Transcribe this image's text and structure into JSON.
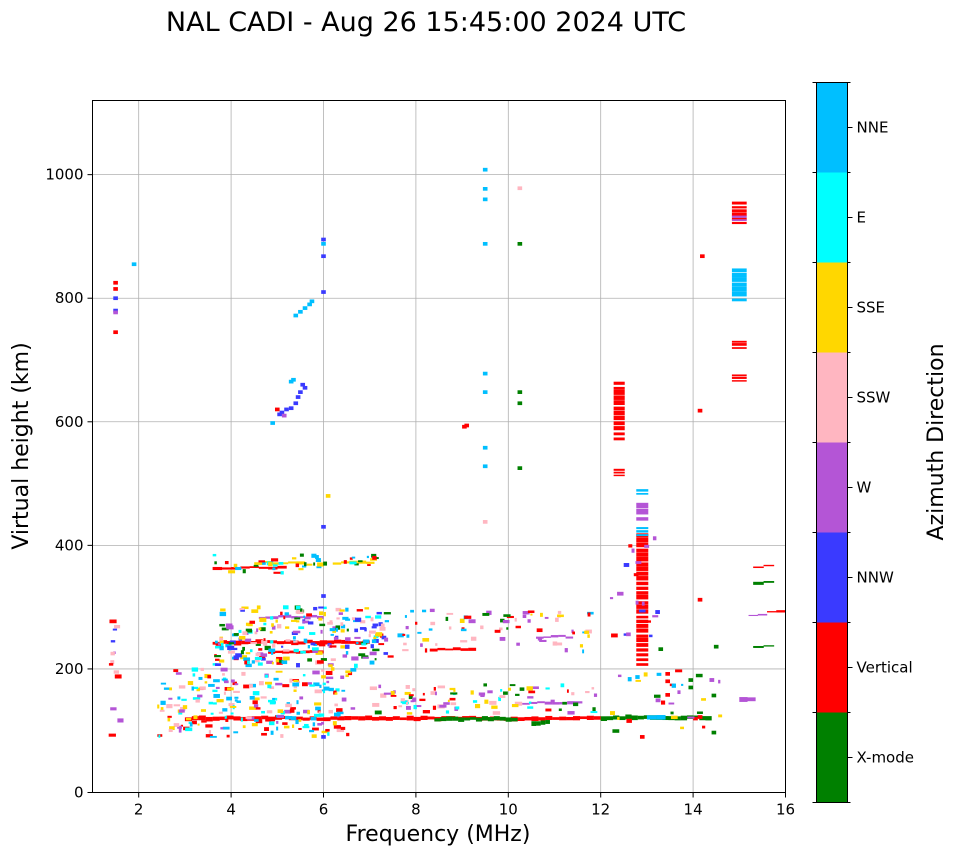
{
  "chart_data": {
    "type": "scatter",
    "title": "NAL CADI - Aug 26 15:45:00 2024 UTC",
    "xlabel": "Frequency (MHz)",
    "ylabel": "Virtual height (km)",
    "xlim": [
      1,
      16
    ],
    "ylim": [
      0,
      1120
    ],
    "xticks": [
      2,
      4,
      6,
      8,
      10,
      12,
      14,
      16
    ],
    "yticks": [
      0,
      200,
      400,
      600,
      800,
      1000
    ],
    "grid": true,
    "colorbar": {
      "label": "Azimuth Direction",
      "categories": [
        {
          "name": "X-mode",
          "color": "#008000"
        },
        {
          "name": "Vertical",
          "color": "#ff0000"
        },
        {
          "name": "NNW",
          "color": "#3a3aff"
        },
        {
          "name": "W",
          "color": "#b455d6"
        },
        {
          "name": "SSW",
          "color": "#ffb6c1"
        },
        {
          "name": "SSE",
          "color": "#ffd700"
        },
        {
          "name": "E",
          "color": "#00ffff"
        },
        {
          "name": "NNE",
          "color": "#00bfff"
        }
      ]
    },
    "bands": [
      {
        "c": "Vertical",
        "x0": 3.0,
        "x1": 12.0,
        "h": 120,
        "n": 60,
        "t": 6
      },
      {
        "c": "X-mode",
        "x0": 8.4,
        "x1": 10.2,
        "h": 119,
        "n": 14,
        "t": 6
      },
      {
        "c": "X-mode",
        "x0": 12.0,
        "x1": 14.4,
        "h": 121,
        "n": 18,
        "t": 6
      },
      {
        "c": "X-mode",
        "x0": 10.5,
        "x1": 10.9,
        "h": 113,
        "n": 4,
        "t": 7
      },
      {
        "c": "Vertical",
        "x0": 14.0,
        "x1": 14.2,
        "h": 121,
        "n": 2,
        "t": 6
      },
      {
        "c": "Vertical",
        "x0": 3.6,
        "x1": 7.0,
        "h": 243,
        "n": 22,
        "t": 6
      },
      {
        "c": "Vertical",
        "x0": 8.3,
        "x1": 9.3,
        "h": 232,
        "n": 6,
        "t": 4
      },
      {
        "c": "Vertical",
        "x0": 4.8,
        "x1": 6.0,
        "h": 228,
        "n": 8,
        "t": 4
      },
      {
        "c": "W",
        "x0": 4.6,
        "x1": 6.0,
        "h": 284,
        "n": 10,
        "t": 4
      },
      {
        "c": "Vertical",
        "x0": 3.6,
        "x1": 5.2,
        "h": 364,
        "n": 8,
        "t": 4
      },
      {
        "c": "SSE",
        "x0": 4.5,
        "x1": 5.6,
        "h": 372,
        "n": 6,
        "t": 4
      },
      {
        "c": "SSE",
        "x0": 6.2,
        "x1": 7.1,
        "h": 372,
        "n": 5,
        "t": 4
      },
      {
        "c": "W",
        "x0": 10.3,
        "x1": 11.6,
        "h": 145,
        "n": 8,
        "t": 4
      },
      {
        "c": "W",
        "x0": 10.6,
        "x1": 11.4,
        "h": 252,
        "n": 5,
        "t": 3
      },
      {
        "c": "W",
        "x0": 15.0,
        "x1": 15.35,
        "h": 152,
        "n": 2,
        "t": 8
      },
      {
        "c": "Vertical",
        "x0": 15.3,
        "x1": 15.75,
        "h": 366,
        "n": 2,
        "t": 3
      },
      {
        "c": "X-mode",
        "x0": 15.3,
        "x1": 15.75,
        "h": 340,
        "n": 2,
        "t": 4
      },
      {
        "c": "X-mode",
        "x0": 15.3,
        "x1": 15.75,
        "h": 237,
        "n": 2,
        "t": 3
      },
      {
        "c": "W",
        "x0": 15.2,
        "x1": 15.6,
        "h": 288,
        "n": 2,
        "t": 2
      },
      {
        "c": "Vertical",
        "x0": 15.6,
        "x1": 16.0,
        "h": 294,
        "n": 2,
        "t": 3
      },
      {
        "c": "NNE",
        "x0": 13.0,
        "x1": 13.4,
        "h": 123,
        "n": 2,
        "t": 6
      }
    ],
    "columns": [
      {
        "c": "Vertical",
        "x": 12.9,
        "y0": 205,
        "y1": 420,
        "n": 28,
        "w": 0.26
      },
      {
        "c": "NNE",
        "x": 12.9,
        "y0": 415,
        "y1": 432,
        "n": 3,
        "w": 0.26
      },
      {
        "c": "NNE",
        "x": 12.9,
        "y0": 482,
        "y1": 492,
        "n": 2,
        "w": 0.26
      },
      {
        "c": "W",
        "x": 12.9,
        "y0": 440,
        "y1": 470,
        "n": 3,
        "w": 0.26
      },
      {
        "c": "Vertical",
        "x": 12.4,
        "y0": 570,
        "y1": 668,
        "n": 12,
        "w": 0.24
      },
      {
        "c": "Vertical",
        "x": 12.4,
        "y0": 512,
        "y1": 525,
        "n": 3,
        "w": 0.24
      },
      {
        "c": "Vertical",
        "x": 15.0,
        "y0": 665,
        "y1": 678,
        "n": 3,
        "w": 0.32
      },
      {
        "c": "Vertical",
        "x": 15.0,
        "y0": 718,
        "y1": 733,
        "n": 3,
        "w": 0.32
      },
      {
        "c": "NNE",
        "x": 15.0,
        "y0": 795,
        "y1": 850,
        "n": 7,
        "w": 0.32
      },
      {
        "c": "Vertical",
        "x": 15.0,
        "y0": 920,
        "y1": 958,
        "n": 6,
        "w": 0.32
      },
      {
        "c": "W",
        "x": 15.0,
        "y0": 925,
        "y1": 935,
        "n": 2,
        "w": 0.32
      }
    ],
    "clusters": [
      {
        "cs": [
          "Vertical",
          "SSE",
          "NNE",
          "E",
          "W",
          "SSW"
        ],
        "x0": 2.4,
        "x1": 6.6,
        "y0": 90,
        "y1": 200,
        "n": 230,
        "seed": 11
      },
      {
        "cs": [
          "Vertical",
          "W",
          "NNE",
          "E",
          "SSE",
          "X-mode",
          "NNW",
          "SSW"
        ],
        "x0": 3.6,
        "x1": 7.4,
        "y0": 205,
        "y1": 300,
        "n": 240,
        "seed": 23
      },
      {
        "cs": [
          "W",
          "SSE",
          "Vertical",
          "X-mode",
          "E",
          "SSW"
        ],
        "x0": 7.0,
        "x1": 12.0,
        "y0": 128,
        "y1": 175,
        "n": 90,
        "seed": 37
      },
      {
        "cs": [
          "W",
          "Vertical",
          "X-mode",
          "SSE",
          "SSW",
          "NNE"
        ],
        "x0": 7.6,
        "x1": 11.8,
        "y0": 228,
        "y1": 295,
        "n": 70,
        "seed": 41
      },
      {
        "cs": [
          "E",
          "SSE",
          "Vertical",
          "NNE",
          "X-mode"
        ],
        "x0": 3.6,
        "x1": 7.2,
        "y0": 355,
        "y1": 385,
        "n": 45,
        "seed": 53
      },
      {
        "cs": [
          "Vertical",
          "NNW",
          "W",
          "SSW"
        ],
        "x0": 1.35,
        "x1": 1.6,
        "y0": 88,
        "y1": 290,
        "n": 14,
        "seed": 61
      },
      {
        "cs": [
          "X-mode",
          "Vertical",
          "W",
          "SSE",
          "NNE"
        ],
        "x0": 12.2,
        "x1": 14.6,
        "y0": 92,
        "y1": 200,
        "n": 30,
        "seed": 71
      },
      {
        "cs": [
          "Vertical",
          "NNW",
          "W"
        ],
        "x0": 12.2,
        "x1": 13.2,
        "y0": 250,
        "y1": 415,
        "n": 18,
        "seed": 79
      }
    ],
    "points": [
      {
        "c": "NNW",
        "x": 1.5,
        "y": 780
      },
      {
        "c": "W",
        "x": 1.5,
        "y": 777
      },
      {
        "c": "Vertical",
        "x": 1.5,
        "y": 825
      },
      {
        "c": "Vertical",
        "x": 1.5,
        "y": 815
      },
      {
        "c": "NNW",
        "x": 1.5,
        "y": 800
      },
      {
        "c": "Vertical",
        "x": 1.5,
        "y": 745
      },
      {
        "c": "NNE",
        "x": 1.9,
        "y": 855
      },
      {
        "c": "NNE",
        "x": 5.4,
        "y": 772
      },
      {
        "c": "NNE",
        "x": 5.5,
        "y": 778
      },
      {
        "c": "NNE",
        "x": 5.6,
        "y": 784
      },
      {
        "c": "NNE",
        "x": 5.7,
        "y": 790
      },
      {
        "c": "NNE",
        "x": 5.75,
        "y": 795
      },
      {
        "c": "NNW",
        "x": 6.0,
        "y": 895
      },
      {
        "c": "NNE",
        "x": 6.0,
        "y": 888
      },
      {
        "c": "NNW",
        "x": 6.0,
        "y": 868
      },
      {
        "c": "NNW",
        "x": 6.0,
        "y": 810
      },
      {
        "c": "SSE",
        "x": 6.1,
        "y": 480
      },
      {
        "c": "NNW",
        "x": 6.0,
        "y": 430
      },
      {
        "c": "NNW",
        "x": 6.0,
        "y": 318
      },
      {
        "c": "NNW",
        "x": 6.0,
        "y": 90
      },
      {
        "c": "NNE",
        "x": 4.9,
        "y": 598
      },
      {
        "c": "Vertical",
        "x": 5.0,
        "y": 620
      },
      {
        "c": "NNW",
        "x": 5.05,
        "y": 612
      },
      {
        "c": "NNW",
        "x": 5.1,
        "y": 615
      },
      {
        "c": "W",
        "x": 5.15,
        "y": 610
      },
      {
        "c": "NNW",
        "x": 5.2,
        "y": 620
      },
      {
        "c": "NNW",
        "x": 5.3,
        "y": 622
      },
      {
        "c": "NNW",
        "x": 5.4,
        "y": 630
      },
      {
        "c": "NNW",
        "x": 5.45,
        "y": 640
      },
      {
        "c": "NNW",
        "x": 5.5,
        "y": 648
      },
      {
        "c": "NNW",
        "x": 5.6,
        "y": 655
      },
      {
        "c": "NNE",
        "x": 5.35,
        "y": 668
      },
      {
        "c": "NNE",
        "x": 5.3,
        "y": 665
      },
      {
        "c": "NNW",
        "x": 5.55,
        "y": 660
      },
      {
        "c": "NNE",
        "x": 9.5,
        "y": 1008
      },
      {
        "c": "NNE",
        "x": 9.5,
        "y": 977
      },
      {
        "c": "NNE",
        "x": 9.5,
        "y": 960
      },
      {
        "c": "NNE",
        "x": 9.5,
        "y": 888
      },
      {
        "c": "NNE",
        "x": 9.5,
        "y": 678
      },
      {
        "c": "NNE",
        "x": 9.5,
        "y": 648
      },
      {
        "c": "NNE",
        "x": 9.5,
        "y": 558
      },
      {
        "c": "NNE",
        "x": 9.5,
        "y": 528
      },
      {
        "c": "SSW",
        "x": 9.5,
        "y": 438
      },
      {
        "c": "SSW",
        "x": 10.25,
        "y": 978
      },
      {
        "c": "X-mode",
        "x": 10.25,
        "y": 888
      },
      {
        "c": "X-mode",
        "x": 10.25,
        "y": 648
      },
      {
        "c": "X-mode",
        "x": 10.25,
        "y": 630
      },
      {
        "c": "X-mode",
        "x": 10.25,
        "y": 525
      },
      {
        "c": "Vertical",
        "x": 9.05,
        "y": 592
      },
      {
        "c": "Vertical",
        "x": 9.1,
        "y": 594
      },
      {
        "c": "Vertical",
        "x": 14.2,
        "y": 868
      },
      {
        "c": "Vertical",
        "x": 14.15,
        "y": 618
      },
      {
        "c": "Vertical",
        "x": 14.15,
        "y": 312
      },
      {
        "c": "Vertical",
        "x": 13.45,
        "y": 192
      },
      {
        "c": "Vertical",
        "x": 13.45,
        "y": 180
      },
      {
        "c": "Vertical",
        "x": 13.45,
        "y": 158
      },
      {
        "c": "X-mode",
        "x": 13.95,
        "y": 182
      },
      {
        "c": "X-mode",
        "x": 13.95,
        "y": 170
      },
      {
        "c": "X-mode",
        "x": 14.45,
        "y": 157
      },
      {
        "c": "X-mode",
        "x": 14.45,
        "y": 97
      },
      {
        "c": "X-mode",
        "x": 14.5,
        "y": 236
      },
      {
        "c": "Vertical",
        "x": 12.9,
        "y": 90
      },
      {
        "c": "X-mode",
        "x": 13.3,
        "y": 232
      },
      {
        "c": "W",
        "x": 12.6,
        "y": 256
      }
    ]
  }
}
